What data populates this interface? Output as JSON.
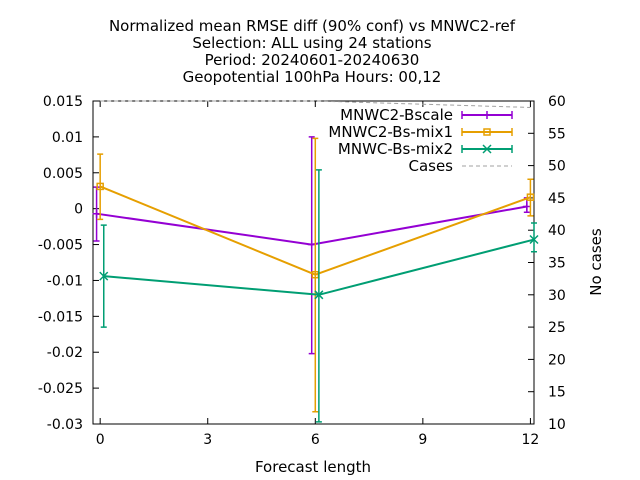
{
  "chart_data": {
    "type": "line",
    "title_lines": [
      "Normalized mean RMSE diff (90% conf) vs MNWC2-ref",
      "Selection: ALL using    24 stations",
      "Period: 20240601-20240630",
      "Geopotential 100hPa   Hours: 00,12"
    ],
    "xlabel": "Forecast length",
    "ylabel": "",
    "y2label": "No cases",
    "xlim": [
      -0.2,
      12.1
    ],
    "ylim": [
      -0.03,
      0.015
    ],
    "y2lim": [
      10,
      60
    ],
    "x_ticks": [
      0,
      3,
      6,
      9,
      12
    ],
    "x_tick_labels": [
      "0",
      "3",
      "6",
      "9",
      "12"
    ],
    "y_ticks": [
      0.015,
      0.01,
      0.005,
      0,
      -0.005,
      -0.01,
      -0.015,
      -0.02,
      -0.025,
      -0.03
    ],
    "y_tick_labels": [
      "0.015",
      "0.01",
      "0.005",
      "0",
      "-0.005",
      "-0.01",
      "-0.015",
      "-0.02",
      "-0.025",
      "-0.03"
    ],
    "y2_ticks": [
      60,
      55,
      50,
      45,
      40,
      35,
      30,
      25,
      20,
      15,
      10
    ],
    "y2_tick_labels": [
      "60",
      "55",
      "50",
      "45",
      "40",
      "35",
      "30",
      "25",
      "20",
      "15",
      "10"
    ],
    "legend_position": "top-right",
    "grid": false,
    "series": [
      {
        "name": "MNWC2-Bscale",
        "color": "#9400d3",
        "marker": "plus",
        "x": [
          -0.1,
          5.9,
          11.9
        ],
        "y": [
          -0.0007,
          -0.005,
          0.0003
        ],
        "err_low": [
          -0.0045,
          -0.0202,
          -0.0005
        ],
        "err_high": [
          0.003,
          0.01,
          0.0015
        ]
      },
      {
        "name": "MNWC2-Bs-mix1",
        "color": "#e69f00",
        "marker": "square",
        "x": [
          0.0,
          6.0,
          12.0
        ],
        "y": [
          0.0031,
          -0.0092,
          0.0016
        ],
        "err_low": [
          -0.0015,
          -0.0283,
          -0.001
        ],
        "err_high": [
          0.0076,
          0.0098,
          0.0041
        ]
      },
      {
        "name": "MNWC-Bs-mix2",
        "color": "#009e73",
        "marker": "x",
        "x": [
          0.1,
          6.1,
          12.1
        ],
        "y": [
          -0.0094,
          -0.012,
          -0.0043
        ],
        "err_low": [
          -0.0165,
          -0.0297,
          -0.006
        ],
        "err_high": [
          -0.0023,
          0.0054,
          -0.002
        ]
      },
      {
        "name": "Cases",
        "color": "#a0a0a0",
        "dashed": true,
        "axis": "y2",
        "x": [
          0,
          6,
          12
        ],
        "y": [
          60,
          60,
          59
        ]
      }
    ]
  }
}
